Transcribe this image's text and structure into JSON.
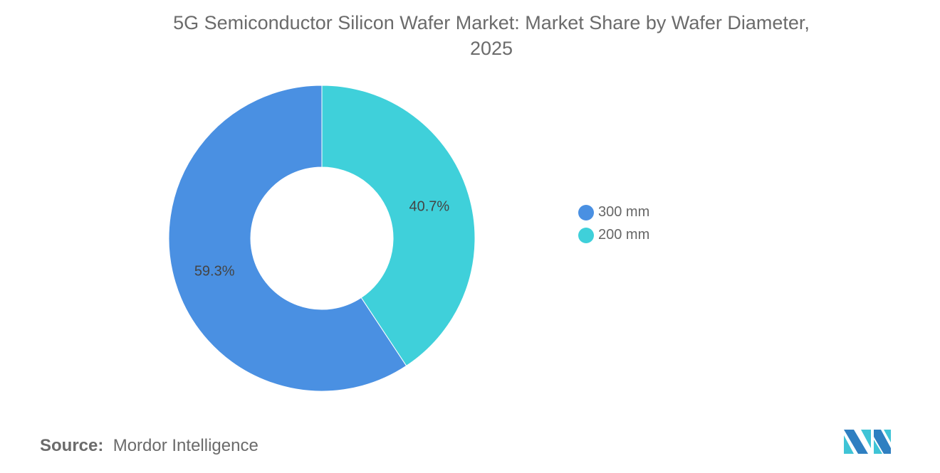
{
  "chart_data": {
    "type": "pie",
    "donut": true,
    "title": "5G Semiconductor Silicon Wafer Market: Market Share by Wafer Diameter, 2025",
    "categories": [
      "300 mm",
      "200 mm"
    ],
    "values": [
      59.3,
      40.7
    ],
    "labels": [
      "59.3%",
      "40.7%"
    ],
    "colors": [
      "#4a90e2",
      "#3fd0da"
    ],
    "legend_position": "right"
  },
  "title_line1": "5G Semiconductor Silicon Wafer Market: Market Share by Wafer Diameter,",
  "title_line2": "2025",
  "source_label": "Source:",
  "source_value": "Mordor Intelligence",
  "logo_text": "Mordor Intelligence"
}
